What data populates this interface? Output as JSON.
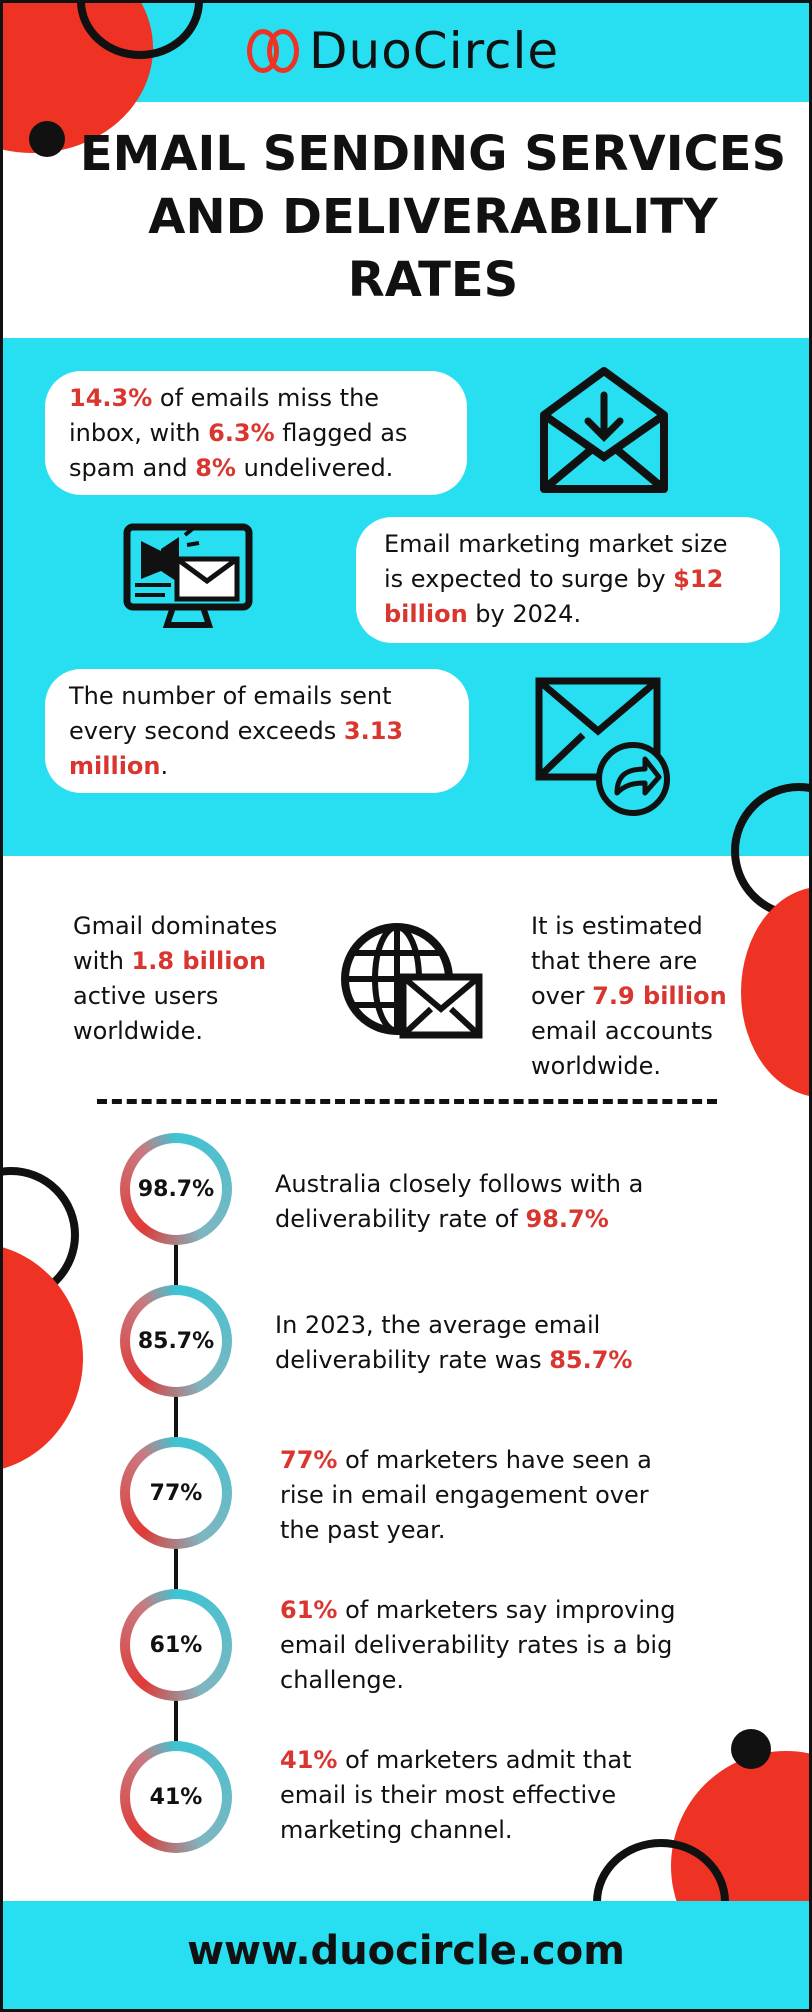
{
  "brand": {
    "logo_text": "DuoCircle",
    "website": "www.duocircle.com",
    "accent": "#d93630",
    "band_color": "#27dff0"
  },
  "title": {
    "line1": "EMAIL SENDING SERVICES",
    "line2": "AND  DELIVERABILITY",
    "line3": "RATES"
  },
  "cards": {
    "inbox": {
      "stat1": "14.3%",
      "t1": " of emails miss the inbox, with ",
      "stat2": "6.3%",
      "t2": " flagged as spam and ",
      "stat3": "8%",
      "t3": " undelivered."
    },
    "market": {
      "t1": "Email marketing market size is expected to surge by ",
      "stat": "$12 billion",
      "t2": " by 2024."
    },
    "sent": {
      "t1": "The number of emails sent every second exceeds ",
      "stat": "3.13 million",
      "t2": "."
    }
  },
  "users": {
    "gmail": {
      "t1": "Gmail dominates with ",
      "stat": "1.8 billion",
      "t2": " active users worldwide."
    },
    "accounts": {
      "t1": "It is estimated that there are over ",
      "stat": "7.9 billion",
      "t2": " email accounts worldwide."
    }
  },
  "timeline": [
    {
      "badge": "98.7%",
      "t1": "Australia closely follows with a deliverability rate of ",
      "stat": "98.7%",
      "t2": ""
    },
    {
      "badge": "85.7%",
      "t1": "In 2023, the average email deliverability rate was ",
      "stat": "85.7%",
      "t2": ""
    },
    {
      "badge": "77%",
      "t1": "",
      "stat": "77%",
      "t2": " of marketers have seen a rise in email engagement over the past year."
    },
    {
      "badge": "61%",
      "t1": "",
      "stat": "61%",
      "t2": " of marketers say improving email deliverability rates is a big challenge."
    },
    {
      "badge": "41%",
      "t1": "",
      "stat": "41%",
      "t2": " of marketers admit that email is their most effective marketing channel."
    }
  ],
  "icons": [
    "envelope-download-icon",
    "megaphone-monitor-icon",
    "envelope-forward-icon",
    "globe-envelope-icon"
  ]
}
